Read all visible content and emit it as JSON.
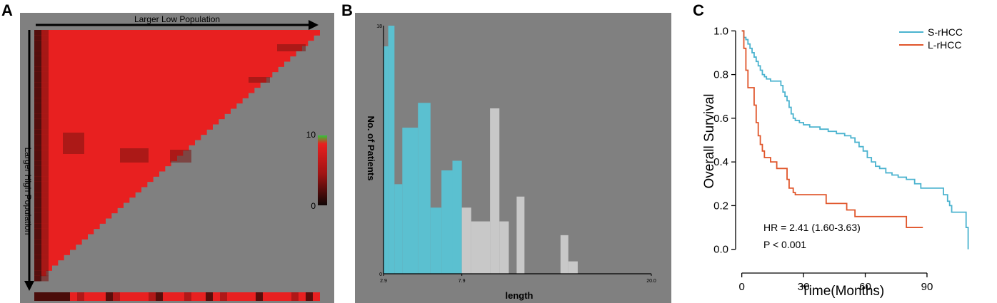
{
  "panels": {
    "a": {
      "letter": "A"
    },
    "b": {
      "letter": "B"
    },
    "c": {
      "letter": "C"
    }
  },
  "colors": {
    "heat_high": "#e82020",
    "heat_low": "#1a0a08",
    "gray_bg": "#808080",
    "cyan": "#5bc0d0",
    "light_gray": "#c8c8c8",
    "s_rhcc": "#4bb3cf",
    "l_rhcc": "#e0552a"
  },
  "chart_data": [
    {
      "panel": "A",
      "type": "heatmap",
      "top_label": "Larger Low Population",
      "left_label": "Larger High Population",
      "colorbar_ticks": [
        "10",
        "0"
      ],
      "colorbar_range": [
        0,
        10
      ]
    },
    {
      "panel": "B",
      "type": "bar",
      "title": "",
      "xlabel": "length",
      "ylabel": "No. of Patients",
      "xlim": [
        2.9,
        20.0
      ],
      "ylim": [
        0,
        18
      ],
      "x_ticks": [
        "2.9",
        "7.9",
        "20.0"
      ],
      "y_ticks": [
        "0",
        "18"
      ],
      "cutoff": 7.9,
      "bins": [
        {
          "x0": 2.9,
          "x1": 3.2,
          "y": 16.5
        },
        {
          "x0": 3.2,
          "x1": 3.6,
          "y": 18.0
        },
        {
          "x0": 3.6,
          "x1": 4.1,
          "y": 6.5
        },
        {
          "x0": 4.1,
          "x1": 5.1,
          "y": 10.6
        },
        {
          "x0": 5.1,
          "x1": 5.9,
          "y": 12.4
        },
        {
          "x0": 5.9,
          "x1": 6.6,
          "y": 4.8
        },
        {
          "x0": 6.6,
          "x1": 7.3,
          "y": 7.5
        },
        {
          "x0": 7.3,
          "x1": 7.9,
          "y": 8.2
        },
        {
          "x0": 7.9,
          "x1": 8.5,
          "y": 4.8
        },
        {
          "x0": 8.5,
          "x1": 9.7,
          "y": 3.8
        },
        {
          "x0": 9.7,
          "x1": 10.3,
          "y": 12.0
        },
        {
          "x0": 10.3,
          "x1": 10.9,
          "y": 3.8
        },
        {
          "x0": 11.4,
          "x1": 11.9,
          "y": 5.6
        },
        {
          "x0": 14.2,
          "x1": 14.7,
          "y": 2.8
        },
        {
          "x0": 14.7,
          "x1": 15.3,
          "y": 0.9
        }
      ]
    },
    {
      "panel": "C",
      "type": "line",
      "title": "",
      "xlabel": "Time(Months)",
      "ylabel": "Overall Survival",
      "xlim": [
        -3,
        115
      ],
      "ylim": [
        -0.05,
        1.05
      ],
      "x_ticks": [
        0,
        30,
        60,
        90
      ],
      "y_ticks": [
        "0.0",
        "0.2",
        "0.4",
        "0.6",
        "0.8",
        "1.0"
      ],
      "legend_position": "top-right",
      "annotations": [
        "HR = 2.41 (1.60-3.63)",
        "P < 0.001"
      ],
      "series": [
        {
          "name": "S-rHCC",
          "points": [
            [
              0,
              1.0
            ],
            [
              1,
              0.97
            ],
            [
              2,
              0.96
            ],
            [
              3,
              0.94
            ],
            [
              4,
              0.92
            ],
            [
              5,
              0.9
            ],
            [
              6,
              0.88
            ],
            [
              7,
              0.86
            ],
            [
              8,
              0.84
            ],
            [
              9,
              0.82
            ],
            [
              10,
              0.8
            ],
            [
              11,
              0.79
            ],
            [
              12,
              0.78
            ],
            [
              14,
              0.77
            ],
            [
              18,
              0.77
            ],
            [
              19,
              0.75
            ],
            [
              20,
              0.72
            ],
            [
              21,
              0.7
            ],
            [
              22,
              0.68
            ],
            [
              23,
              0.65
            ],
            [
              24,
              0.62
            ],
            [
              25,
              0.6
            ],
            [
              26,
              0.59
            ],
            [
              28,
              0.58
            ],
            [
              30,
              0.57
            ],
            [
              33,
              0.56
            ],
            [
              36,
              0.56
            ],
            [
              38,
              0.55
            ],
            [
              42,
              0.54
            ],
            [
              46,
              0.53
            ],
            [
              50,
              0.52
            ],
            [
              53,
              0.51
            ],
            [
              55,
              0.49
            ],
            [
              57,
              0.47
            ],
            [
              59,
              0.45
            ],
            [
              61,
              0.42
            ],
            [
              63,
              0.4
            ],
            [
              65,
              0.38
            ],
            [
              67,
              0.37
            ],
            [
              70,
              0.35
            ],
            [
              73,
              0.34
            ],
            [
              76,
              0.33
            ],
            [
              80,
              0.32
            ],
            [
              84,
              0.3
            ],
            [
              87,
              0.28
            ],
            [
              96,
              0.28
            ],
            [
              98,
              0.25
            ],
            [
              100,
              0.22
            ],
            [
              101,
              0.2
            ],
            [
              102,
              0.17
            ],
            [
              108,
              0.17
            ],
            [
              109,
              0.1
            ],
            [
              110,
              0.0
            ]
          ]
        },
        {
          "name": "L-rHCC",
          "points": [
            [
              0,
              1.0
            ],
            [
              1,
              0.92
            ],
            [
              2,
              0.82
            ],
            [
              3,
              0.74
            ],
            [
              5,
              0.74
            ],
            [
              6,
              0.66
            ],
            [
              7,
              0.58
            ],
            [
              8,
              0.52
            ],
            [
              9,
              0.48
            ],
            [
              10,
              0.45
            ],
            [
              11,
              0.42
            ],
            [
              13,
              0.42
            ],
            [
              14,
              0.4
            ],
            [
              16,
              0.4
            ],
            [
              17,
              0.37
            ],
            [
              20,
              0.37
            ],
            [
              22,
              0.32
            ],
            [
              23,
              0.28
            ],
            [
              25,
              0.26
            ],
            [
              26,
              0.25
            ],
            [
              33,
              0.25
            ],
            [
              38,
              0.25
            ],
            [
              41,
              0.21
            ],
            [
              48,
              0.21
            ],
            [
              51,
              0.18
            ],
            [
              55,
              0.15
            ],
            [
              70,
              0.15
            ],
            [
              79,
              0.15
            ],
            [
              80,
              0.1
            ],
            [
              88,
              0.1
            ]
          ]
        }
      ]
    }
  ]
}
